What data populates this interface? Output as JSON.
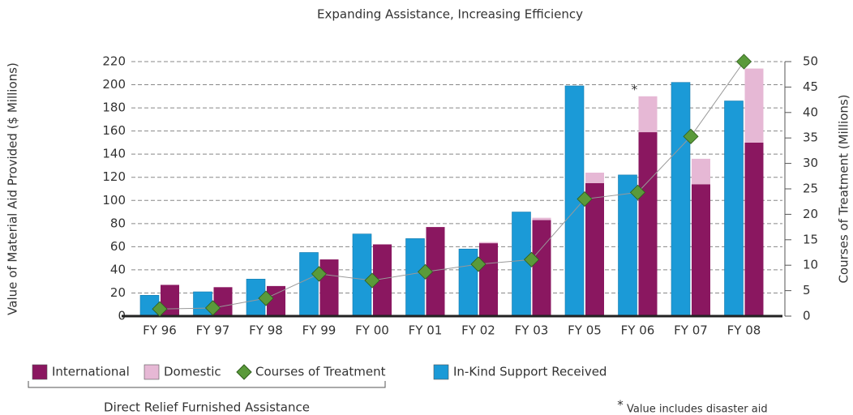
{
  "chart_data": {
    "type": "bar-line",
    "title": "Expanding Assistance, Increasing Efficiency",
    "y_label": "Value of Material Aid Provided ($ Millions)",
    "y2_label": "Courses of Treatment (Millions)",
    "categories": [
      "FY 96",
      "FY 97",
      "FY 98",
      "FY 99",
      "FY 00",
      "FY 01",
      "FY 02",
      "FY 03",
      "FY 05",
      "FY 06",
      "FY 07",
      "FY 08"
    ],
    "series": [
      {
        "name": "International",
        "color": "#8a1760",
        "stack": "furnished",
        "values": [
          27,
          25,
          26,
          49,
          62,
          77,
          63,
          83,
          115,
          159,
          114,
          150
        ]
      },
      {
        "name": "Domestic",
        "color": "#e6b8d5",
        "stack": "furnished",
        "values": [
          0,
          0,
          0,
          0,
          0,
          0,
          1,
          2,
          9,
          31,
          22,
          64
        ]
      },
      {
        "name": "Courses of Treatment",
        "color": "#5a9a3a",
        "axis": "y2",
        "values": [
          1.4,
          1.6,
          3.5,
          8.3,
          7,
          8.7,
          10.2,
          11.1,
          23,
          24.3,
          35.3,
          50
        ]
      },
      {
        "name": "In-Kind Support Received",
        "color": "#1b9ad7",
        "stack": "inkind",
        "values": [
          18,
          21,
          32,
          55,
          71,
          67,
          58,
          90,
          199,
          122,
          202,
          186
        ]
      }
    ],
    "ylim": [
      0,
      220
    ],
    "yticks": [
      0,
      20,
      40,
      60,
      80,
      100,
      120,
      140,
      160,
      180,
      200,
      220
    ],
    "y2lim": [
      0,
      50
    ],
    "y2ticks": [
      0,
      5,
      10,
      15,
      20,
      25,
      30,
      35,
      40,
      45,
      50
    ],
    "grid": true,
    "annotation": {
      "text": "*",
      "category": "FY 06"
    },
    "legend_group_label": "Direct Relief Furnished Assistance",
    "footnote_marker": "*",
    "footnote": "Value includes disaster aid"
  }
}
